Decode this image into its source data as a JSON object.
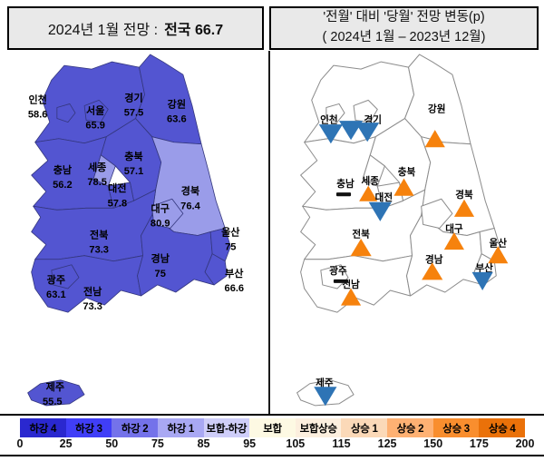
{
  "left_panel": {
    "title_prefix": "2024년 1월 전망 :",
    "title_value": "전국 66.7"
  },
  "right_panel": {
    "title_line1": "'전월' 대비 '당월' 전망 변동(p)",
    "title_line2": "( 2024년 1월 –  2023년 12월)"
  },
  "chart_data": {
    "type": "heatmap",
    "subtype": "south-korea-choropleth-pair",
    "left_title": "2024년 1월 전망 : 전국 66.7",
    "right_title": "'전월' 대비 '당월' 전망 변동(p) ( 2024년 1월 – 2023년 12월)",
    "national_value": 66.7,
    "regions": [
      {
        "id": "incheon",
        "name": "인천",
        "value": "58.6",
        "change": "down",
        "shade": "base"
      },
      {
        "id": "seoul",
        "name": "서울",
        "value": "65.9",
        "change": "down",
        "shade": "base"
      },
      {
        "id": "gyeonggi",
        "name": "경기",
        "value": "57.5",
        "change": "down",
        "shade": "base"
      },
      {
        "id": "gangwon",
        "name": "강원",
        "value": "63.6",
        "change": "up",
        "shade": "base"
      },
      {
        "id": "chungbuk",
        "name": "충북",
        "value": "57.1",
        "change": "up",
        "shade": "base"
      },
      {
        "id": "chungnam",
        "name": "충남",
        "value": "56.2",
        "change": "flat",
        "shade": "base"
      },
      {
        "id": "sejong",
        "name": "세종",
        "value": "78.5",
        "change": "up",
        "shade": "light"
      },
      {
        "id": "daejeon",
        "name": "대전",
        "value": "57.8",
        "change": "down",
        "shade": "base"
      },
      {
        "id": "gyeongbuk",
        "name": "경북",
        "value": "76.4",
        "change": "up",
        "shade": "light"
      },
      {
        "id": "daegu",
        "name": "대구",
        "value": "80.9",
        "change": "up",
        "shade": "light"
      },
      {
        "id": "ulsan",
        "name": "울산",
        "value": "75",
        "change": "up",
        "shade": "base"
      },
      {
        "id": "jeonbuk",
        "name": "전북",
        "value": "73.3",
        "change": "up",
        "shade": "base"
      },
      {
        "id": "gyeongnam",
        "name": "경남",
        "value": "75",
        "change": "up",
        "shade": "base"
      },
      {
        "id": "busan",
        "name": "부산",
        "value": "66.6",
        "change": "down",
        "shade": "base"
      },
      {
        "id": "gwangju",
        "name": "광주",
        "value": "63.1",
        "change": "flat",
        "shade": "base"
      },
      {
        "id": "jeonnam",
        "name": "전남",
        "value": "73.3",
        "change": "up",
        "shade": "base"
      },
      {
        "id": "jeju",
        "name": "제주",
        "value": "55.5",
        "change": "down",
        "shade": "base"
      }
    ],
    "legend": {
      "items": [
        {
          "label": "하강 4",
          "color": "#2a28cf"
        },
        {
          "label": "하강 3",
          "color": "#403ef7"
        },
        {
          "label": "하강 2",
          "color": "#7472ea"
        },
        {
          "label": "하강 1",
          "color": "#a9a8f3"
        },
        {
          "label": "보합-하강",
          "color": "#cfcef9"
        },
        {
          "label": "보합",
          "color": "#fdf9e3"
        },
        {
          "label": "보합상승",
          "color": "#fcefde"
        },
        {
          "label": "상승 1",
          "color": "#fbd9b8"
        },
        {
          "label": "상승 2",
          "color": "#feb173"
        },
        {
          "label": "상승 3",
          "color": "#f98e2e"
        },
        {
          "label": "상승 4",
          "color": "#ea7109"
        }
      ],
      "ticks": [
        "0",
        "25",
        "50",
        "75",
        "85",
        "95",
        "105",
        "115",
        "125",
        "150",
        "175",
        "200"
      ]
    }
  },
  "symbols": {
    "up_color": "#f6820d",
    "down_color": "#2e74b5",
    "flat_color": "#111111"
  },
  "map_colors": {
    "base": "#5355d1",
    "light": "#9a9ce9",
    "left_stroke": "#34377e",
    "right_fill": "#ffffff",
    "right_stroke": "#8c8c8c"
  }
}
